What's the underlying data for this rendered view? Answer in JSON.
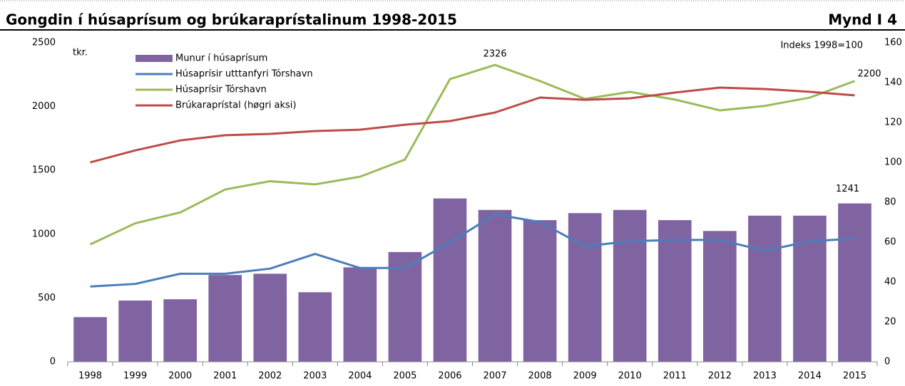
{
  "chart_data": {
    "type": "bar",
    "title": "Gongdin í húsaprísum og brúkaraprístalinum 1998-2015",
    "figure_label": "Mynd I 4",
    "y_unit_label": "tkr.",
    "y2_unit_label": "Indeks 1998=100",
    "categories": [
      "1998",
      "1999",
      "2000",
      "2001",
      "2002",
      "2003",
      "2004",
      "2005",
      "2006",
      "2007",
      "2008",
      "2009",
      "2010",
      "2011",
      "2012",
      "2013",
      "2014",
      "2015"
    ],
    "series": [
      {
        "name": "Munur í húsaprísum",
        "type": "bar",
        "color": "#8064a2",
        "values": [
          350,
          480,
          490,
          680,
          690,
          545,
          740,
          860,
          1280,
          1190,
          1110,
          1165,
          1190,
          1110,
          1025,
          1145,
          1145,
          1241
        ]
      },
      {
        "name": "Húsaprísir utttanfyri Tórshavn",
        "type": "line",
        "color": "#4a7ebb",
        "values": [
          590,
          610,
          690,
          690,
          730,
          845,
          735,
          735,
          935,
          1155,
          1095,
          905,
          945,
          955,
          955,
          870,
          945,
          965
        ]
      },
      {
        "name": "Húsaprísir Tórshavn",
        "type": "line",
        "color": "#9bbb59",
        "values": [
          920,
          1085,
          1170,
          1350,
          1415,
          1390,
          1450,
          1585,
          2215,
          2326,
          2200,
          2060,
          2115,
          2055,
          1970,
          2005,
          2070,
          2200
        ]
      },
      {
        "name": "Brúkaraprístal (høgri aksi)",
        "type": "line",
        "color": "#be4b48",
        "axis": "y2",
        "values": [
          100,
          106,
          111,
          113.6,
          114.3,
          115.7,
          116.4,
          118.9,
          120.7,
          125,
          132.5,
          131.4,
          132.1,
          135,
          137.5,
          136.8,
          135.4,
          133.6
        ]
      }
    ],
    "ylim": [
      0,
      2500
    ],
    "yticks": [
      0,
      500,
      1000,
      1500,
      2000,
      2500
    ],
    "y2lim": [
      0,
      160
    ],
    "y2ticks": [
      0,
      20,
      40,
      60,
      80,
      100,
      120,
      140,
      160
    ],
    "legend": "upper-left",
    "grid": false
  }
}
